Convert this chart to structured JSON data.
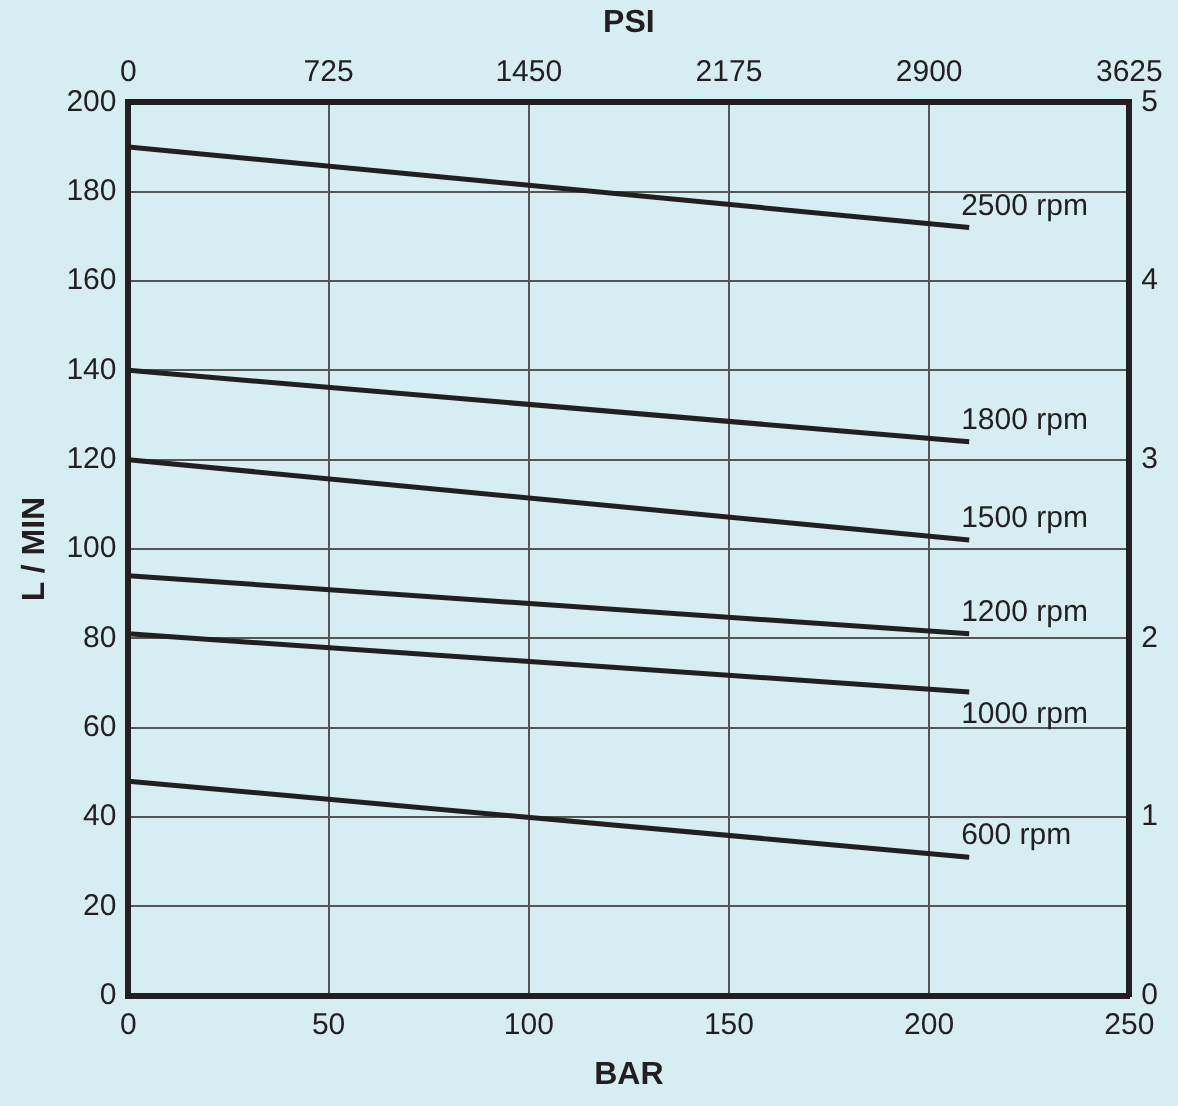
{
  "chart_data": {
    "type": "line",
    "xlabel": "BAR",
    "ylabel": "L / MIN",
    "x2label": "PSI",
    "x": [
      0,
      210
    ],
    "series": [
      {
        "name": "2500 rpm",
        "color": "#231f20",
        "values": [
          190,
          172
        ]
      },
      {
        "name": "1800 rpm",
        "color": "#231f20",
        "values": [
          140,
          124
        ]
      },
      {
        "name": "1500 rpm",
        "color": "#231f20",
        "values": [
          120,
          102
        ]
      },
      {
        "name": "1200 rpm",
        "color": "#231f20",
        "values": [
          94,
          81
        ]
      },
      {
        "name": "1000 rpm",
        "color": "#231f20",
        "values": [
          81,
          68
        ]
      },
      {
        "name": "600 rpm",
        "color": "#231f20",
        "values": [
          48,
          31
        ]
      }
    ],
    "xlim": [
      0,
      250
    ],
    "xticks": [
      0,
      50,
      100,
      150,
      200,
      250
    ],
    "x2lim": [
      0,
      3625
    ],
    "x2ticks": [
      0,
      725,
      1450,
      2175,
      2900,
      3625
    ],
    "ylim": [
      0,
      200
    ],
    "yticks": [
      0,
      20,
      40,
      60,
      80,
      100,
      120,
      140,
      160,
      180,
      200
    ],
    "y2lim": [
      0,
      5
    ],
    "y2ticks": [
      0,
      1,
      2,
      3,
      4,
      5
    ],
    "grid": true,
    "legend": false,
    "marker": "none",
    "line_style": "solid"
  }
}
